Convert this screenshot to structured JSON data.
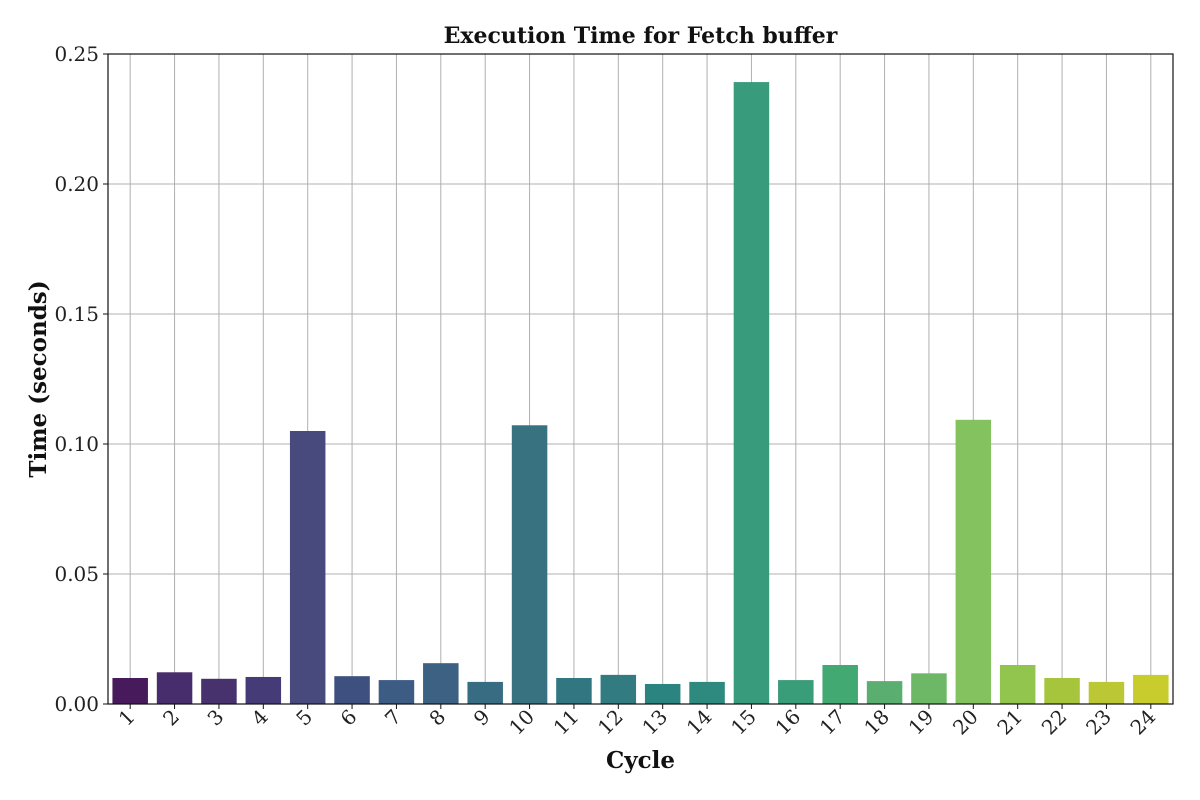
{
  "chart_data": {
    "type": "bar",
    "title": "Execution Time for Fetch buffer",
    "xlabel": "Cycle",
    "ylabel": "Time (seconds)",
    "categories": [
      "1",
      "2",
      "3",
      "4",
      "5",
      "6",
      "7",
      "8",
      "9",
      "10",
      "11",
      "12",
      "13",
      "14",
      "15",
      "16",
      "17",
      "18",
      "19",
      "20",
      "21",
      "22",
      "23",
      "24"
    ],
    "values": [
      0.01,
      0.0122,
      0.0097,
      0.0104,
      0.105,
      0.0107,
      0.0092,
      0.0157,
      0.0085,
      0.1072,
      0.01,
      0.0112,
      0.0077,
      0.0085,
      0.2392,
      0.0092,
      0.015,
      0.0088,
      0.0118,
      0.1093,
      0.015,
      0.01,
      0.0085,
      0.0112
    ],
    "colors": [
      "#471a5b",
      "#482d6c",
      "#47326e",
      "#453b76",
      "#484a7e",
      "#3e5080",
      "#3c5c84",
      "#3d6182",
      "#386c83",
      "#387280",
      "#317680",
      "#317b81",
      "#2b847f",
      "#2e8a7e",
      "#389b7b",
      "#399d79",
      "#43a972",
      "#5aae6f",
      "#6db866",
      "#84c260",
      "#91c54d",
      "#a7c53c",
      "#bcc735",
      "#c8cd2d"
    ],
    "yticks": [
      "0.00",
      "0.05",
      "0.10",
      "0.15",
      "0.20",
      "0.25"
    ],
    "ylim": [
      0,
      0.25
    ],
    "grid": true
  }
}
